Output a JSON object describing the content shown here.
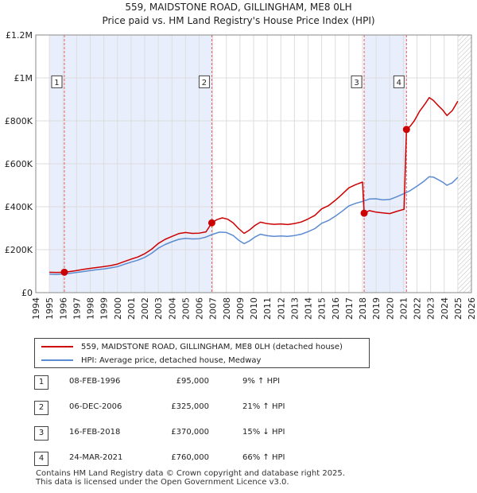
{
  "chart_data": {
    "type": "line",
    "title": "559, MAIDSTONE ROAD, GILLINGHAM, ME8 0LH",
    "subtitle": "Price paid vs. HM Land Registry's House Price Index (HPI)",
    "x_ticks": [
      "1994",
      "1995",
      "1996",
      "1997",
      "1998",
      "1999",
      "2000",
      "2001",
      "2002",
      "2003",
      "2004",
      "2005",
      "2006",
      "2007",
      "2008",
      "2009",
      "2010",
      "2011",
      "2012",
      "2013",
      "2014",
      "2015",
      "2016",
      "2017",
      "2018",
      "2019",
      "2020",
      "2021",
      "2022",
      "2023",
      "2024",
      "2025",
      "2026"
    ],
    "y_ticks": [
      {
        "value": 0,
        "label": "£0"
      },
      {
        "value": 200000,
        "label": "£200K"
      },
      {
        "value": 400000,
        "label": "£400K"
      },
      {
        "value": 600000,
        "label": "£600K"
      },
      {
        "value": 800000,
        "label": "£800K"
      },
      {
        "value": 1000000,
        "label": "£1M"
      },
      {
        "value": 1200000,
        "label": "£1.2M"
      }
    ],
    "xlim": [
      1994,
      2026
    ],
    "ylim": [
      0,
      1200000
    ],
    "data_end_year": 2025.0,
    "series": [
      {
        "name": "559, MAIDSTONE ROAD, GILLINGHAM, ME8 0LH (detached house)",
        "color": "#cc0000",
        "points": [
          [
            1995.0,
            95000
          ],
          [
            1995.5,
            94000
          ],
          [
            1996.1,
            95000
          ],
          [
            1996.5,
            98000
          ],
          [
            1997,
            103000
          ],
          [
            1997.5,
            108000
          ],
          [
            1998,
            113000
          ],
          [
            1998.5,
            117000
          ],
          [
            1999,
            121000
          ],
          [
            1999.5,
            126000
          ],
          [
            2000,
            133000
          ],
          [
            2000.5,
            145000
          ],
          [
            2001,
            156000
          ],
          [
            2001.5,
            166000
          ],
          [
            2002,
            181000
          ],
          [
            2002.5,
            202000
          ],
          [
            2003,
            229000
          ],
          [
            2003.5,
            248000
          ],
          [
            2004,
            262000
          ],
          [
            2004.5,
            275000
          ],
          [
            2005,
            280000
          ],
          [
            2005.5,
            276000
          ],
          [
            2006,
            277000
          ],
          [
            2006.5,
            283000
          ],
          [
            2006.93,
            325000
          ],
          [
            2007.3,
            340000
          ],
          [
            2007.7,
            348000
          ],
          [
            2008.1,
            342000
          ],
          [
            2008.5,
            325000
          ],
          [
            2008.9,
            298000
          ],
          [
            2009.3,
            276000
          ],
          [
            2009.7,
            292000
          ],
          [
            2010.1,
            313000
          ],
          [
            2010.5,
            328000
          ],
          [
            2011,
            321000
          ],
          [
            2011.5,
            318000
          ],
          [
            2012,
            320000
          ],
          [
            2012.5,
            317000
          ],
          [
            2013,
            322000
          ],
          [
            2013.5,
            329000
          ],
          [
            2014,
            343000
          ],
          [
            2014.5,
            360000
          ],
          [
            2015,
            390000
          ],
          [
            2015.5,
            405000
          ],
          [
            2016,
            430000
          ],
          [
            2016.5,
            458000
          ],
          [
            2017,
            488000
          ],
          [
            2017.5,
            503000
          ],
          [
            2018.0,
            515000
          ],
          [
            2018.12,
            370000
          ],
          [
            2018.5,
            382000
          ],
          [
            2019,
            375000
          ],
          [
            2019.5,
            371000
          ],
          [
            2020,
            368000
          ],
          [
            2020.5,
            378000
          ],
          [
            2021.05,
            388000
          ],
          [
            2021.23,
            760000
          ],
          [
            2021.5,
            775000
          ],
          [
            2021.8,
            800000
          ],
          [
            2022.2,
            845000
          ],
          [
            2022.6,
            880000
          ],
          [
            2022.9,
            908000
          ],
          [
            2023.2,
            895000
          ],
          [
            2023.5,
            875000
          ],
          [
            2023.9,
            850000
          ],
          [
            2024.2,
            825000
          ],
          [
            2024.6,
            848000
          ],
          [
            2025.0,
            892000
          ]
        ]
      },
      {
        "name": "HPI: Average price, detached house, Medway",
        "color": "#5b8bd0",
        "points": [
          [
            1995.0,
            86000
          ],
          [
            1995.5,
            85000
          ],
          [
            1996,
            87000
          ],
          [
            1996.5,
            90000
          ],
          [
            1997,
            94000
          ],
          [
            1997.5,
            98000
          ],
          [
            1998,
            103000
          ],
          [
            1998.5,
            107000
          ],
          [
            1999,
            110000
          ],
          [
            1999.5,
            115000
          ],
          [
            2000,
            121000
          ],
          [
            2000.5,
            132000
          ],
          [
            2001,
            142000
          ],
          [
            2001.5,
            151000
          ],
          [
            2002,
            164000
          ],
          [
            2002.5,
            183000
          ],
          [
            2003,
            207000
          ],
          [
            2003.5,
            224000
          ],
          [
            2004,
            237000
          ],
          [
            2004.5,
            248000
          ],
          [
            2005,
            253000
          ],
          [
            2005.5,
            250000
          ],
          [
            2006,
            251000
          ],
          [
            2006.5,
            259000
          ],
          [
            2007,
            272000
          ],
          [
            2007.5,
            282000
          ],
          [
            2008,
            280000
          ],
          [
            2008.5,
            266000
          ],
          [
            2008.9,
            244000
          ],
          [
            2009.3,
            228000
          ],
          [
            2009.7,
            241000
          ],
          [
            2010.1,
            259000
          ],
          [
            2010.5,
            272000
          ],
          [
            2011,
            265000
          ],
          [
            2011.5,
            262000
          ],
          [
            2012,
            264000
          ],
          [
            2012.5,
            262000
          ],
          [
            2013,
            266000
          ],
          [
            2013.5,
            272000
          ],
          [
            2014,
            284000
          ],
          [
            2014.5,
            298000
          ],
          [
            2015,
            323000
          ],
          [
            2015.5,
            336000
          ],
          [
            2016,
            356000
          ],
          [
            2016.5,
            379000
          ],
          [
            2017,
            404000
          ],
          [
            2017.5,
            416000
          ],
          [
            2018,
            425000
          ],
          [
            2018.5,
            436000
          ],
          [
            2019,
            437000
          ],
          [
            2019.5,
            432000
          ],
          [
            2020,
            434000
          ],
          [
            2020.5,
            446000
          ],
          [
            2021,
            460000
          ],
          [
            2021.5,
            475000
          ],
          [
            2022,
            496000
          ],
          [
            2022.5,
            518000
          ],
          [
            2022.9,
            540000
          ],
          [
            2023.2,
            538000
          ],
          [
            2023.5,
            528000
          ],
          [
            2023.9,
            514000
          ],
          [
            2024.2,
            500000
          ],
          [
            2024.6,
            512000
          ],
          [
            2025.0,
            537000
          ]
        ]
      }
    ],
    "sales": [
      {
        "num": "1",
        "x": 1996.1,
        "y": 95000
      },
      {
        "num": "2",
        "x": 2006.93,
        "y": 325000
      },
      {
        "num": "3",
        "x": 2018.12,
        "y": 370000
      },
      {
        "num": "4",
        "x": 2021.23,
        "y": 760000
      }
    ],
    "shaded_periods": [
      [
        1995.0,
        1996.1
      ],
      [
        1996.1,
        2006.93
      ],
      [
        2018.12,
        2021.23
      ]
    ],
    "label_box_y": 980000
  },
  "legend": {
    "property_label": "559, MAIDSTONE ROAD, GILLINGHAM, ME8 0LH (detached house)",
    "hpi_label": "HPI: Average price, detached house, Medway"
  },
  "transactions": [
    {
      "num": "1",
      "date": "08-FEB-1996",
      "price": "£95,000",
      "hpi": "9% ↑ HPI"
    },
    {
      "num": "2",
      "date": "06-DEC-2006",
      "price": "£325,000",
      "hpi": "21% ↑ HPI"
    },
    {
      "num": "3",
      "date": "16-FEB-2018",
      "price": "£370,000",
      "hpi": "15% ↓ HPI"
    },
    {
      "num": "4",
      "date": "24-MAR-2021",
      "price": "£760,000",
      "hpi": "66% ↑ HPI"
    }
  ],
  "footer": {
    "line1": "Contains HM Land Registry data © Crown copyright and database right 2025.",
    "line2": "This data is licensed under the Open Government Licence v3.0."
  }
}
